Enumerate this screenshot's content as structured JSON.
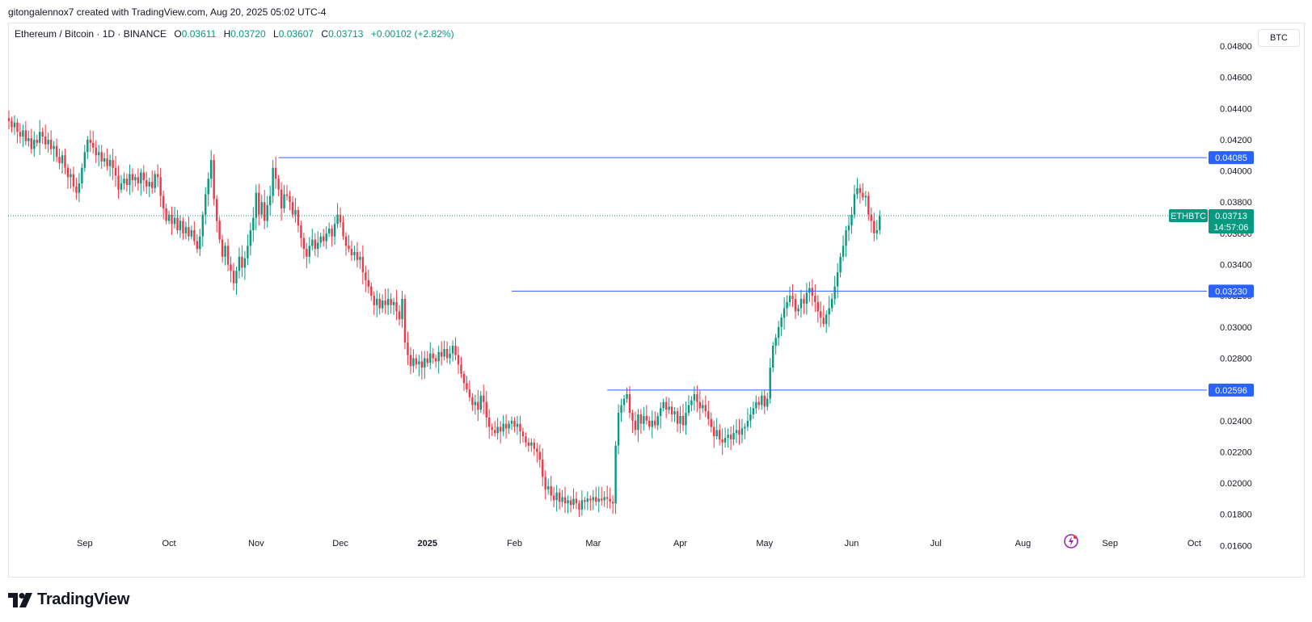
{
  "header": {
    "credit": "gitongalennox7 created with TradingView.com, Aug 20, 2025 05:02 UTC-4",
    "symbol": "Ethereum / Bitcoin · 1D · BINANCE",
    "open_label": "O",
    "open_value": "0.03611",
    "high_label": "H",
    "high_value": "0.03720",
    "low_label": "L",
    "low_value": "0.03607",
    "close_label": "C",
    "close_value": "0.03713",
    "change": "+0.00102 (+2.82%)"
  },
  "price_scale": {
    "currency": "BTC"
  },
  "brand": {
    "name": "TradingView"
  },
  "colors": {
    "up": "#089981",
    "down": "#f23645",
    "level": "#2962ff",
    "last": "#089981"
  },
  "icons": {
    "logo": "tradingview-logo-icon",
    "flash": "flash-icon"
  },
  "chart_data": {
    "type": "candlestick",
    "symbol": "ETHBTC",
    "ylim": [
      0.0155,
      0.0495
    ],
    "y_ticks": [
      "0.04800",
      "0.04600",
      "0.04400",
      "0.04200",
      "0.04000",
      "0.03800",
      "0.03600",
      "0.03400",
      "0.03200",
      "0.03000",
      "0.02800",
      "0.02600",
      "0.02400",
      "0.02200",
      "0.02000",
      "0.01800",
      "0.01600"
    ],
    "x_ticks": [
      {
        "label": "Sep",
        "date": "2024-09-01",
        "bold": false
      },
      {
        "label": "Oct",
        "date": "2024-10-01",
        "bold": false
      },
      {
        "label": "Nov",
        "date": "2024-11-01",
        "bold": false
      },
      {
        "label": "Dec",
        "date": "2024-12-01",
        "bold": false
      },
      {
        "label": "2025",
        "date": "2025-01-01",
        "bold": true
      },
      {
        "label": "Feb",
        "date": "2025-02-01",
        "bold": false
      },
      {
        "label": "Mar",
        "date": "2025-03-01",
        "bold": false
      },
      {
        "label": "Apr",
        "date": "2025-04-01",
        "bold": false
      },
      {
        "label": "May",
        "date": "2025-05-01",
        "bold": false
      },
      {
        "label": "Jun",
        "date": "2025-06-01",
        "bold": false
      },
      {
        "label": "Jul",
        "date": "2025-07-01",
        "bold": false
      },
      {
        "label": "Aug",
        "date": "2025-08-01",
        "bold": false
      },
      {
        "label": "Sep",
        "date": "2025-09-01",
        "bold": false
      },
      {
        "label": "Oct",
        "date": "2025-10-01",
        "bold": false
      }
    ],
    "levels": [
      {
        "value": 0.04085,
        "label": "0.04085",
        "start": "2024-11-09"
      },
      {
        "value": 0.0323,
        "label": "0.03230",
        "start": "2025-01-31"
      },
      {
        "value": 0.02596,
        "label": "0.02596",
        "start": "2025-03-06"
      }
    ],
    "last_price": {
      "value": 0.03713,
      "label": "0.03713",
      "symbol": "ETHBTC",
      "countdown": "14:57:06"
    },
    "start_date": "2024-08-05",
    "closes": [
      0.0432,
      0.0428,
      0.0431,
      0.0425,
      0.0422,
      0.0426,
      0.0419,
      0.0421,
      0.0414,
      0.042,
      0.0418,
      0.0425,
      0.0422,
      0.0417,
      0.042,
      0.0414,
      0.0416,
      0.0409,
      0.0405,
      0.041,
      0.0402,
      0.0396,
      0.0398,
      0.039,
      0.0386,
      0.0392,
      0.0402,
      0.0412,
      0.042,
      0.0418,
      0.0415,
      0.041,
      0.0412,
      0.0406,
      0.0408,
      0.0403,
      0.0407,
      0.0402,
      0.0397,
      0.0388,
      0.0392,
      0.0395,
      0.0391,
      0.0398,
      0.0394,
      0.0396,
      0.0392,
      0.0399,
      0.0394,
      0.039,
      0.0393,
      0.0389,
      0.0398,
      0.0396,
      0.0384,
      0.0376,
      0.0368,
      0.0372,
      0.0366,
      0.037,
      0.0362,
      0.0368,
      0.036,
      0.0364,
      0.0358,
      0.0362,
      0.0355,
      0.035,
      0.0358,
      0.0372,
      0.0385,
      0.0395,
      0.0407,
      0.0382,
      0.0368,
      0.0356,
      0.0345,
      0.0352,
      0.034,
      0.0336,
      0.0328,
      0.0336,
      0.0345,
      0.0338,
      0.0344,
      0.0352,
      0.0362,
      0.037,
      0.0386,
      0.0372,
      0.038,
      0.0368,
      0.0378,
      0.0384,
      0.0402,
      0.0395,
      0.0388,
      0.0376,
      0.0385,
      0.0384,
      0.038,
      0.0372,
      0.0375,
      0.0365,
      0.0357,
      0.035,
      0.0345,
      0.0352,
      0.0356,
      0.035,
      0.0354,
      0.0358,
      0.0355,
      0.036,
      0.0363,
      0.0358,
      0.0366,
      0.0372,
      0.0367,
      0.0358,
      0.0352,
      0.035,
      0.0346,
      0.0348,
      0.0343,
      0.0345,
      0.0335,
      0.033,
      0.0326,
      0.032,
      0.0314,
      0.0318,
      0.0312,
      0.0317,
      0.0314,
      0.0318,
      0.0314,
      0.0316,
      0.031,
      0.0305,
      0.0318,
      0.029,
      0.0282,
      0.0275,
      0.028,
      0.0276,
      0.0278,
      0.0274,
      0.028,
      0.0277,
      0.0283,
      0.028,
      0.0278,
      0.0284,
      0.0281,
      0.0286,
      0.028,
      0.0283,
      0.0288,
      0.0282,
      0.0276,
      0.027,
      0.0264,
      0.026,
      0.0255,
      0.025,
      0.0252,
      0.0247,
      0.0256,
      0.0252,
      0.0242,
      0.0236,
      0.0234,
      0.0232,
      0.0236,
      0.0233,
      0.0238,
      0.0235,
      0.0238,
      0.024,
      0.0236,
      0.0238,
      0.0233,
      0.023,
      0.0226,
      0.0224,
      0.0226,
      0.0222,
      0.022,
      0.0215,
      0.0204,
      0.0196,
      0.0198,
      0.0192,
      0.0189,
      0.0194,
      0.0188,
      0.0191,
      0.0187,
      0.0189,
      0.0186,
      0.019,
      0.0187,
      0.0183,
      0.0189,
      0.0188,
      0.019,
      0.0189,
      0.0191,
      0.0188,
      0.019,
      0.0189,
      0.0191,
      0.019,
      0.0188,
      0.0187,
      0.0224,
      0.0245,
      0.025,
      0.0254,
      0.0257,
      0.0245,
      0.024,
      0.0234,
      0.0244,
      0.0238,
      0.0243,
      0.024,
      0.0236,
      0.024,
      0.0237,
      0.0243,
      0.0248,
      0.0252,
      0.0247,
      0.0249,
      0.0244,
      0.0246,
      0.0238,
      0.0243,
      0.0237,
      0.0245,
      0.025,
      0.0253,
      0.0257,
      0.0252,
      0.0248,
      0.025,
      0.0246,
      0.0241,
      0.0236,
      0.023,
      0.0234,
      0.0228,
      0.0226,
      0.0229,
      0.0231,
      0.0228,
      0.0232,
      0.0234,
      0.0231,
      0.0235,
      0.0236,
      0.024,
      0.0244,
      0.0248,
      0.0252,
      0.025,
      0.0256,
      0.0249,
      0.0254,
      0.0274,
      0.0288,
      0.0293,
      0.03,
      0.0306,
      0.0312,
      0.0316,
      0.032,
      0.0318,
      0.031,
      0.0312,
      0.0318,
      0.0315,
      0.0322,
      0.0325,
      0.032,
      0.0316,
      0.031,
      0.0306,
      0.0302,
      0.0308,
      0.0312,
      0.0318,
      0.0326,
      0.0335,
      0.0345,
      0.0352,
      0.0362,
      0.0365,
      0.0372,
      0.0385,
      0.0389,
      0.0386,
      0.0383,
      0.0384,
      0.0372,
      0.0368,
      0.036,
      0.0362,
      0.0371
    ]
  }
}
